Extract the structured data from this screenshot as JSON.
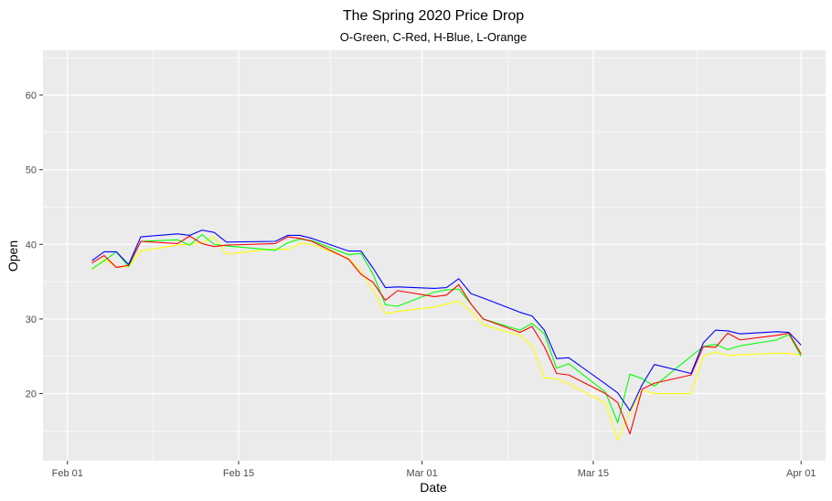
{
  "chart_data": {
    "type": "line",
    "title": "The Spring 2020 Price Drop",
    "subtitle": "O-Green, C-Red, H-Blue, L-Orange",
    "xlabel": "Date",
    "ylabel": "Open",
    "xlim": [
      "2020-01-30",
      "2020-04-03"
    ],
    "ylim": [
      11,
      66
    ],
    "x_ticks": [
      {
        "date": "2020-02-01",
        "label": "Feb 01"
      },
      {
        "date": "2020-02-15",
        "label": "Feb 15"
      },
      {
        "date": "2020-03-01",
        "label": "Mar 01"
      },
      {
        "date": "2020-03-15",
        "label": "Mar 15"
      },
      {
        "date": "2020-04-01",
        "label": "Apr 01"
      }
    ],
    "y_ticks": [
      20,
      30,
      40,
      50,
      60
    ],
    "grid": true,
    "background": "#ebebeb",
    "dates": [
      "2020-02-03",
      "2020-02-04",
      "2020-02-05",
      "2020-02-06",
      "2020-02-07",
      "2020-02-10",
      "2020-02-11",
      "2020-02-12",
      "2020-02-13",
      "2020-02-14",
      "2020-02-18",
      "2020-02-19",
      "2020-02-20",
      "2020-02-21",
      "2020-02-24",
      "2020-02-25",
      "2020-02-26",
      "2020-02-27",
      "2020-02-28",
      "2020-03-02",
      "2020-03-03",
      "2020-03-04",
      "2020-03-05",
      "2020-03-06",
      "2020-03-09",
      "2020-03-10",
      "2020-03-11",
      "2020-03-12",
      "2020-03-13",
      "2020-03-16",
      "2020-03-17",
      "2020-03-18",
      "2020-03-19",
      "2020-03-20",
      "2020-03-23",
      "2020-03-24",
      "2020-03-25",
      "2020-03-26",
      "2020-03-27",
      "2020-03-30",
      "2020-03-31",
      "2020-04-01"
    ],
    "series": [
      {
        "name": "O",
        "color": "#00ff00",
        "values": [
          36.7,
          37.8,
          39.0,
          37.0,
          40.4,
          40.6,
          39.9,
          41.3,
          40.0,
          39.8,
          39.2,
          40.2,
          40.7,
          40.5,
          38.6,
          38.8,
          36.0,
          31.9,
          31.7,
          33.6,
          33.9,
          34.0,
          32.0,
          30.0,
          28.5,
          29.4,
          28.0,
          23.4,
          24.0,
          20.2,
          16.1,
          22.6,
          22.0,
          21.0,
          25.0,
          26.3,
          26.6,
          25.9,
          26.4,
          27.2,
          27.9,
          25.0
        ]
      },
      {
        "name": "C",
        "color": "#ff0000",
        "values": [
          37.5,
          38.5,
          36.9,
          37.2,
          40.4,
          40.1,
          41.1,
          40.1,
          39.7,
          39.9,
          40.1,
          41.0,
          40.8,
          40.4,
          38.0,
          36.0,
          34.9,
          32.5,
          33.8,
          33.0,
          33.2,
          34.6,
          32.0,
          30.0,
          28.2,
          29.0,
          26.3,
          22.7,
          22.5,
          20.0,
          18.8,
          14.6,
          20.6,
          21.4,
          22.5,
          26.3,
          26.2,
          28.1,
          27.2,
          27.8,
          28.1,
          25.3
        ]
      },
      {
        "name": "H",
        "color": "#0000ff",
        "values": [
          37.8,
          39.0,
          39.0,
          37.3,
          41.0,
          41.4,
          41.2,
          41.9,
          41.6,
          40.3,
          40.4,
          41.2,
          41.2,
          40.8,
          39.1,
          39.1,
          36.8,
          34.2,
          34.3,
          34.1,
          34.2,
          35.4,
          33.4,
          32.8,
          30.9,
          30.4,
          28.5,
          24.7,
          24.8,
          21.3,
          20.1,
          17.7,
          21.2,
          23.9,
          22.7,
          26.8,
          28.5,
          28.4,
          28.0,
          28.3,
          28.2,
          26.5
        ]
      },
      {
        "name": "L",
        "color": "#ffff00",
        "values": [
          36.6,
          38.0,
          37.0,
          37.0,
          39.1,
          39.9,
          40.0,
          40.2,
          41.0,
          38.7,
          39.4,
          39.3,
          40.1,
          40.0,
          38.1,
          36.4,
          33.8,
          30.7,
          31.0,
          31.6,
          32.0,
          32.4,
          31.0,
          29.2,
          27.8,
          26.4,
          22.1,
          22.0,
          21.3,
          18.7,
          13.8,
          17.5,
          20.4,
          20.0,
          20.0,
          25.0,
          25.6,
          25.1,
          25.2,
          25.4,
          25.4,
          25.1
        ]
      }
    ]
  }
}
